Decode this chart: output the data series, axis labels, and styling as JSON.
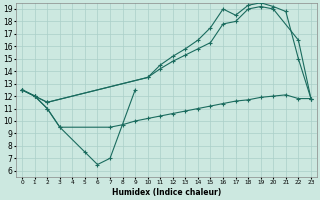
{
  "xlabel": "Humidex (Indice chaleur)",
  "xlim": [
    -0.5,
    23.5
  ],
  "ylim": [
    5.5,
    19.5
  ],
  "xticks": [
    0,
    1,
    2,
    3,
    4,
    5,
    6,
    7,
    8,
    9,
    10,
    11,
    12,
    13,
    14,
    15,
    16,
    17,
    18,
    19,
    20,
    21,
    22,
    23
  ],
  "yticks": [
    6,
    7,
    8,
    9,
    10,
    11,
    12,
    13,
    14,
    15,
    16,
    17,
    18,
    19
  ],
  "bg_color": "#cce8e0",
  "line_color": "#1a6b5e",
  "grid_color": "#aacfc8",
  "s1x": [
    0,
    1,
    2,
    3,
    5,
    6,
    7,
    9
  ],
  "s1y": [
    12.5,
    12.0,
    11.0,
    9.5,
    7.5,
    6.5,
    7.0,
    12.5
  ],
  "s2x": [
    0,
    1,
    2,
    3,
    7,
    8,
    9,
    10,
    11,
    12,
    13,
    14,
    15,
    16,
    17,
    18,
    19,
    20,
    21,
    22,
    23
  ],
  "s2y": [
    12.5,
    12.0,
    11.0,
    9.5,
    9.5,
    9.7,
    10.0,
    10.2,
    10.4,
    10.6,
    10.8,
    11.0,
    11.2,
    11.4,
    11.6,
    11.7,
    11.9,
    12.0,
    12.1,
    11.8,
    11.8
  ],
  "s3x": [
    0,
    1,
    2,
    10,
    11,
    12,
    13,
    14,
    15,
    16,
    17,
    18,
    19,
    20,
    22,
    23
  ],
  "s3y": [
    12.5,
    12.0,
    11.5,
    13.5,
    14.2,
    14.8,
    15.3,
    15.8,
    16.3,
    17.8,
    18.0,
    19.0,
    19.2,
    19.0,
    16.5,
    11.8
  ],
  "s4x": [
    0,
    1,
    2,
    10,
    11,
    12,
    13,
    14,
    15,
    16,
    17,
    18,
    19,
    20,
    21,
    22,
    23
  ],
  "s4y": [
    12.5,
    12.0,
    11.5,
    13.5,
    14.5,
    15.2,
    15.8,
    16.5,
    17.5,
    19.0,
    18.5,
    19.3,
    19.5,
    19.2,
    18.8,
    15.0,
    11.8
  ]
}
